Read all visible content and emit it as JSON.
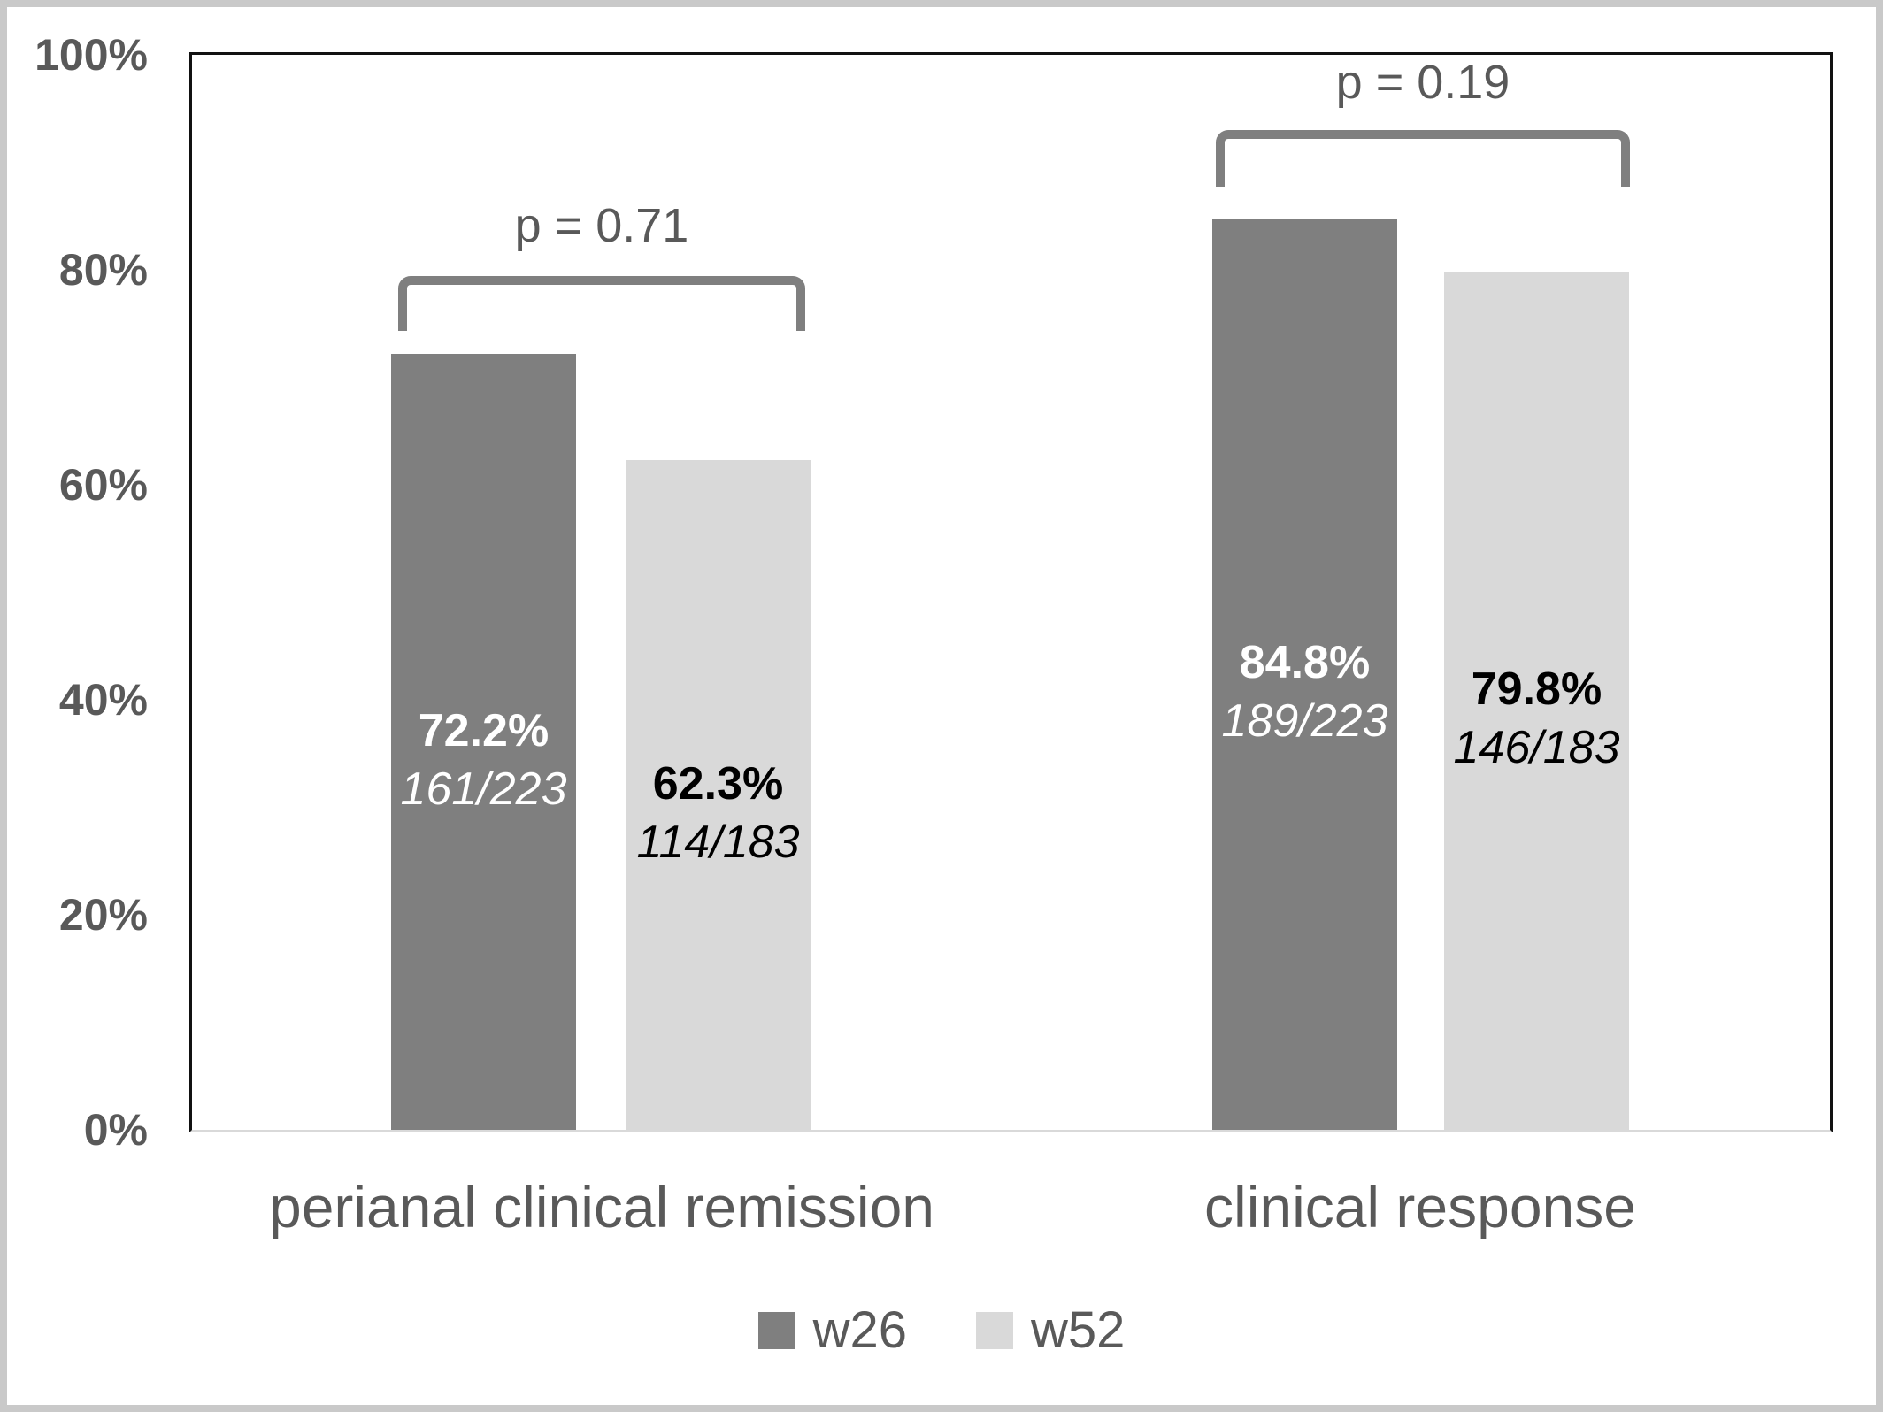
{
  "chart_data": {
    "type": "bar",
    "title": "",
    "xlabel": "",
    "ylabel": "",
    "categories": [
      "perianal clinical remission",
      "clinical response"
    ],
    "series": [
      {
        "name": "w26",
        "color": "#7f7f7f",
        "label_color": "#ffffff",
        "values": [
          72.2,
          84.8
        ],
        "value_labels": [
          "72.2%",
          "84.8%"
        ],
        "fraction_labels": [
          "161/223",
          "189/223"
        ]
      },
      {
        "name": "w52",
        "color": "#d9d9d9",
        "label_color": "#000000",
        "values": [
          62.3,
          79.8
        ],
        "value_labels": [
          "62.3%",
          "79.8%"
        ],
        "fraction_labels": [
          "114/183",
          "146/183"
        ]
      }
    ],
    "p_values": [
      "p = 0.71",
      "p = 0.19"
    ],
    "y_ticks": [
      "100%",
      "80%",
      "60%",
      "40%",
      "20%",
      "0%"
    ],
    "ylim": [
      0,
      100
    ],
    "grid": false,
    "legend_position": "bottom",
    "colors": {
      "axis_frame": "#111111",
      "baseline": "#d9d9d9",
      "bracket": "#7f7f7f",
      "text": "#595959",
      "outer_border": "#c9c9c9"
    }
  }
}
